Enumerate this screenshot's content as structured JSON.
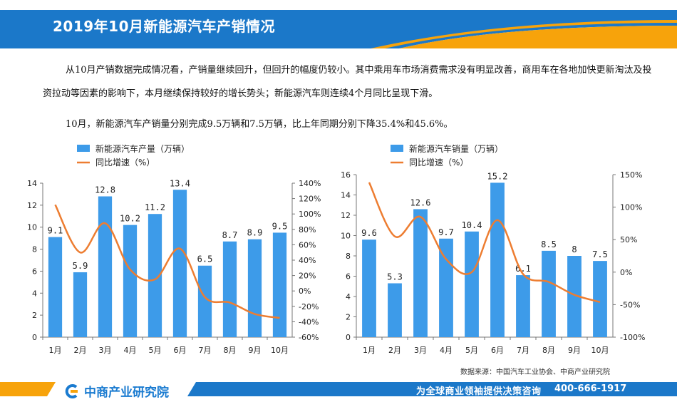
{
  "header": {
    "title": "2019年10月新能源汽车产销情况"
  },
  "paragraphs": {
    "p1": "从10月产销数据完成情况看，产销量继续回升，但回升的幅度仍较小。其中乘用车市场消费需求没有明显改善，商用车在各地加快更新淘汰及投资拉动等因素的影响下，本月继续保持较好的增长势头；新能源汽车则连续4个月同比呈现下滑。",
    "p2": "10月，新能源汽车产销量分别完成9.5万辆和7.5万辆，比上年同期分别下降35.4%和45.6%。"
  },
  "colors": {
    "bar": "#3d9be9",
    "line": "#ed7d31",
    "header_blue": "#1b78c9",
    "accent_orange": "#f7a30b"
  },
  "chart_data": [
    {
      "type": "bar",
      "categories": [
        "1月",
        "2月",
        "3月",
        "4月",
        "5月",
        "6月",
        "7月",
        "8月",
        "9月",
        "10月"
      ],
      "series": [
        {
          "name": "新能源汽车产量（万辆）",
          "values": [
            9.1,
            5.9,
            12.8,
            10.2,
            11.2,
            13.4,
            6.5,
            8.7,
            8.9,
            9.5
          ],
          "labels": [
            "9.1",
            "5.9",
            "12.8",
            "10.2",
            "11.2",
            "13.4",
            "6.5",
            "8.7",
            "8.9",
            "9.5"
          ],
          "axis": "left"
        },
        {
          "name": "同比增速（%）",
          "type": "line",
          "values": [
            112,
            50,
            88,
            28,
            15,
            55,
            -8,
            -15,
            -30,
            -35
          ],
          "axis": "right"
        }
      ],
      "ylim": [
        0,
        14
      ],
      "yticks": [
        0,
        2,
        4,
        6,
        8,
        10,
        12,
        14
      ],
      "y2lim": [
        -60,
        140
      ],
      "y2ticks": [
        "-60%",
        "-40%",
        "-20%",
        "0%",
        "20%",
        "40%",
        "60%",
        "80%",
        "100%",
        "120%",
        "140%"
      ],
      "y2tickvalues": [
        -60,
        -40,
        -20,
        0,
        20,
        40,
        60,
        80,
        100,
        120,
        140
      ]
    },
    {
      "type": "bar",
      "categories": [
        "1月",
        "2月",
        "3月",
        "4月",
        "5月",
        "6月",
        "7月",
        "8月",
        "9月",
        "10月"
      ],
      "series": [
        {
          "name": "新能源汽车销量（万辆）",
          "values": [
            9.6,
            5.3,
            12.6,
            9.7,
            10.4,
            15.2,
            6.1,
            8.5,
            8,
            7.5
          ],
          "labels": [
            "9.6",
            "5.3",
            "12.6",
            "9.7",
            "10.4",
            "15.2",
            "6.1",
            "8.5",
            "8",
            "7.5"
          ],
          "axis": "left"
        },
        {
          "name": "同比增速（%）",
          "type": "line",
          "values": [
            138,
            55,
            85,
            20,
            0,
            80,
            -3,
            -15,
            -35,
            -46
          ],
          "axis": "right"
        }
      ],
      "ylim": [
        0,
        16
      ],
      "yticks": [
        0,
        2,
        4,
        6,
        8,
        10,
        12,
        14,
        16
      ],
      "y2lim": [
        -100,
        150
      ],
      "y2ticks": [
        "-100%",
        "-50%",
        "0%",
        "50%",
        "100%",
        "150%"
      ],
      "y2tickvalues": [
        -100,
        -50,
        0,
        50,
        100,
        150
      ]
    }
  ],
  "source": "数据来源：中国汽车工业协会、中商产业研究院",
  "footer": {
    "brand": "中商产业研究院",
    "slogan": "为全球商业领袖提供决策咨询",
    "phone": "400-666-1917"
  }
}
